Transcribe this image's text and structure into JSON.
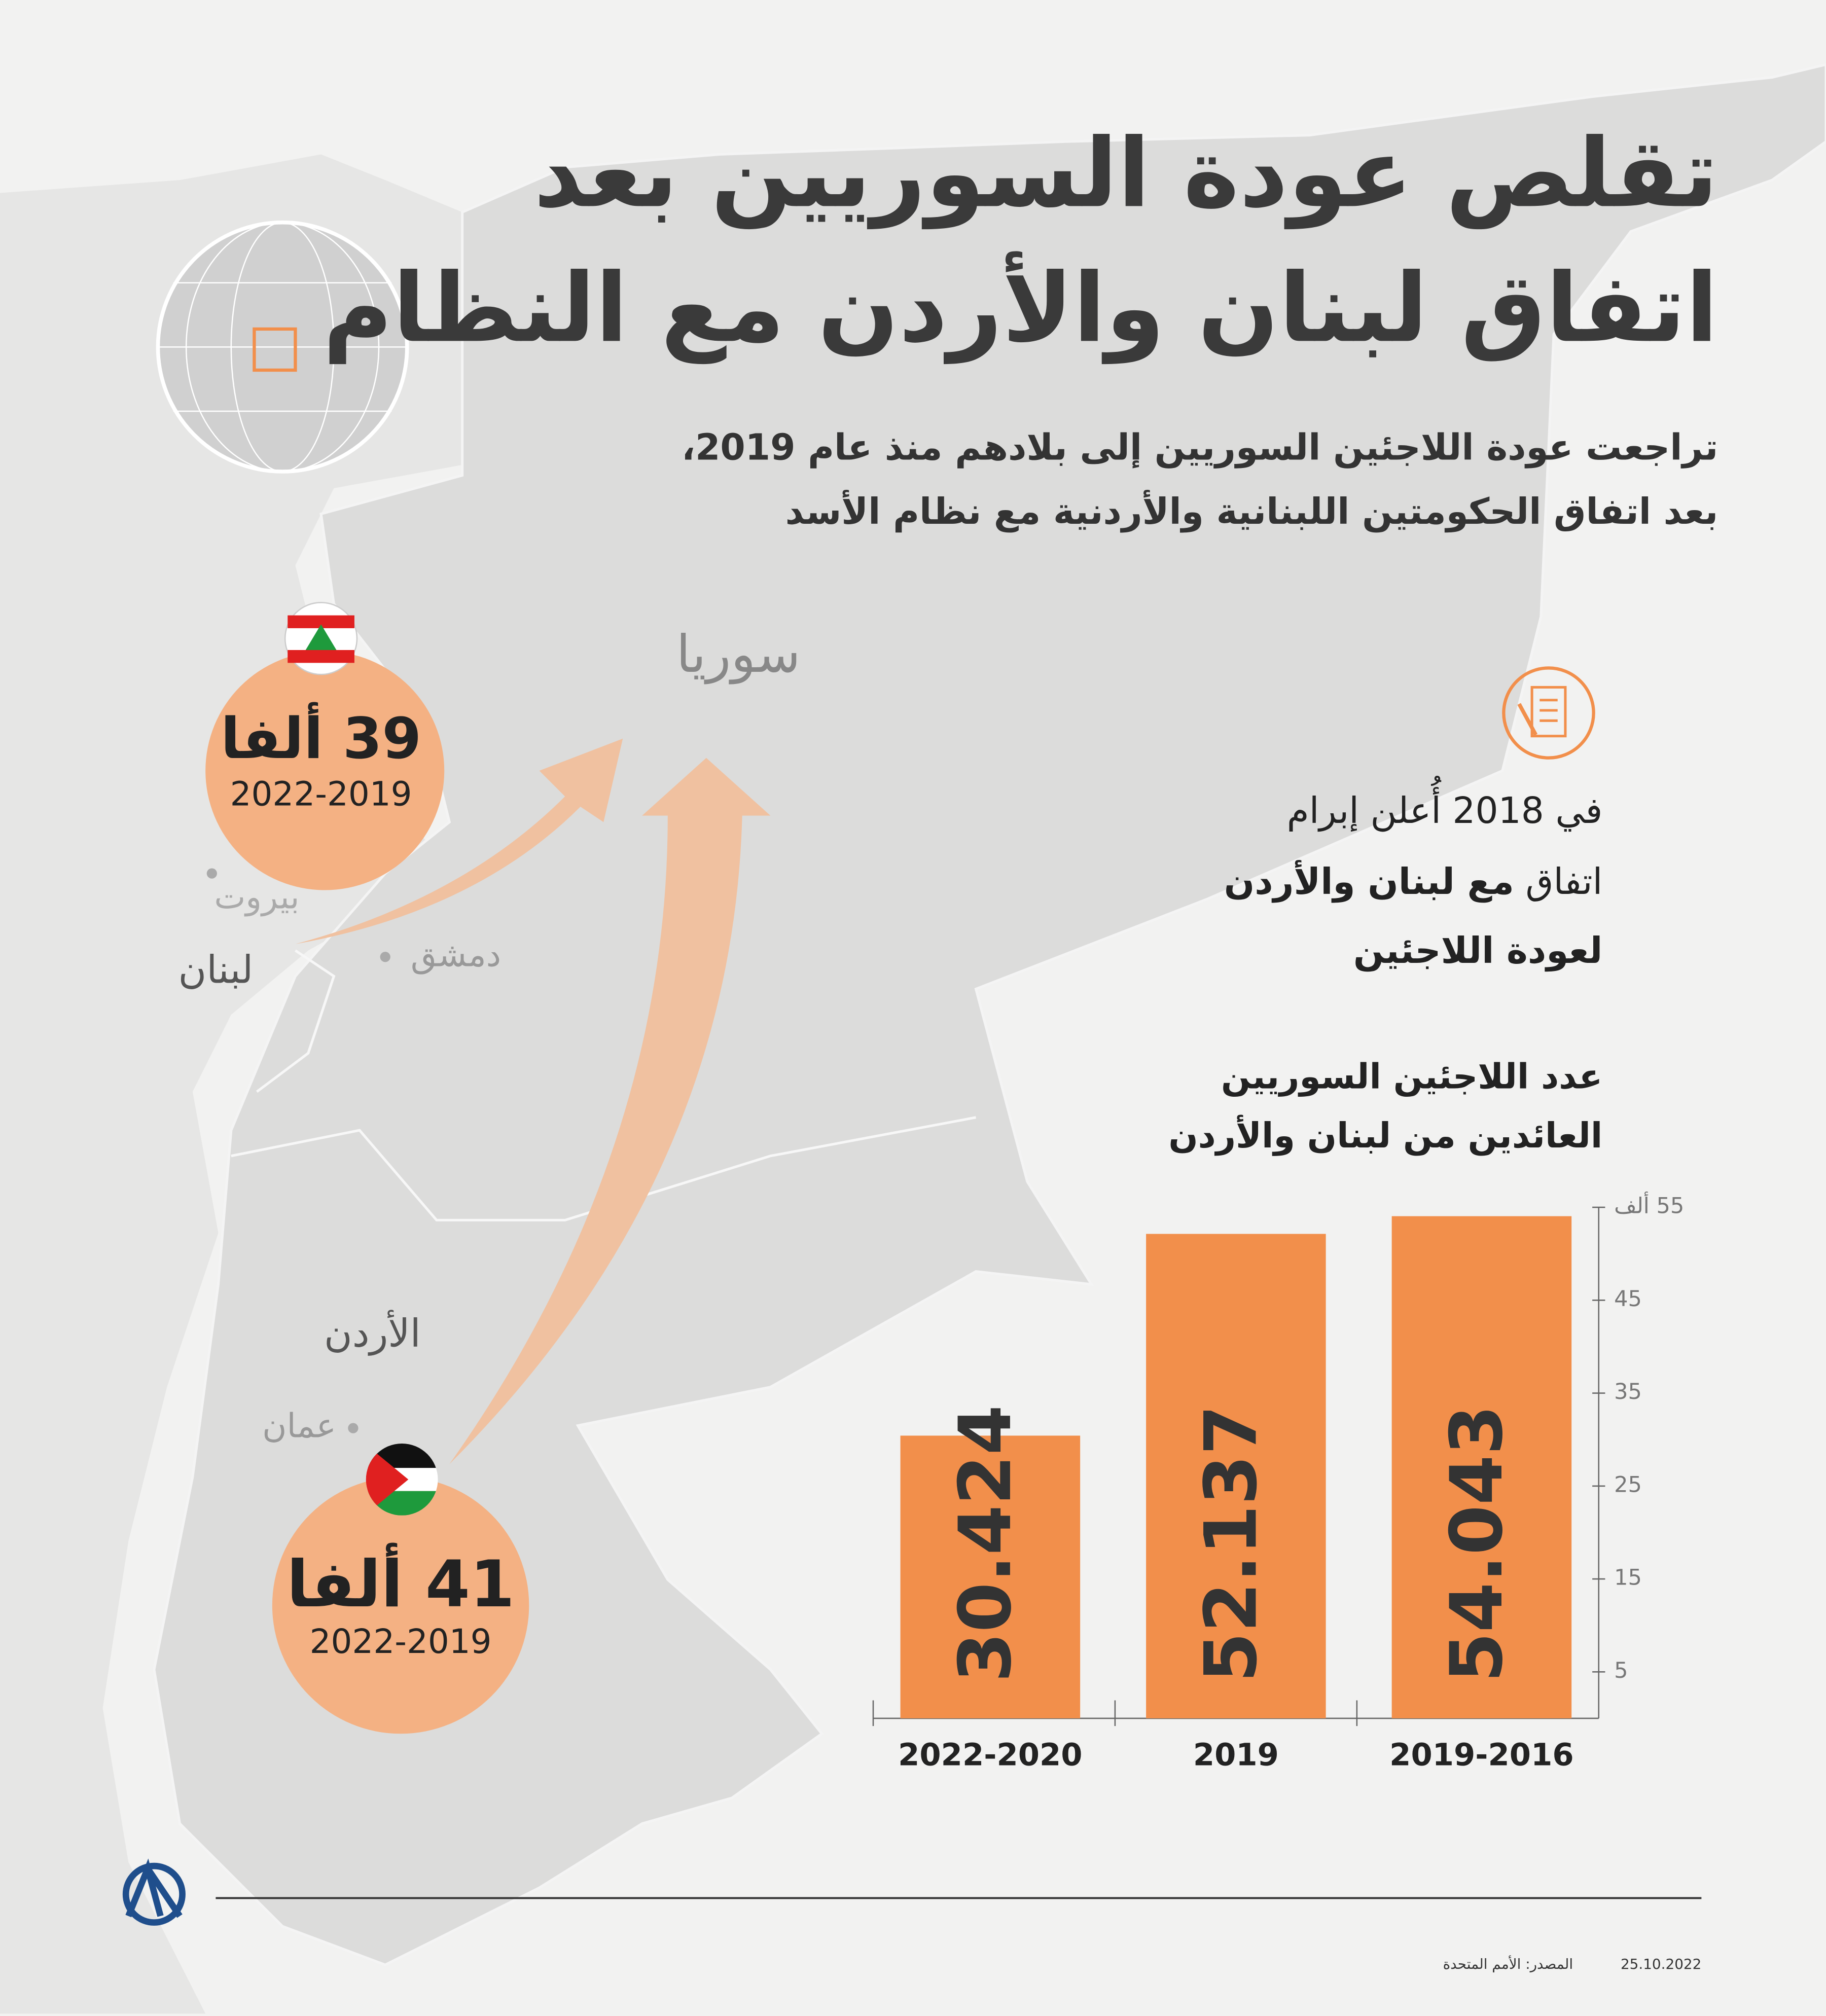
{
  "header": {
    "title_line1": "تقلص عودة السوريين بعد",
    "title_line2": "اتفاق لبنان والأردن مع النظام",
    "subtitle_line1": "تراجعت عودة اللاجئين السوريين إلى بلادهم منذ عام 2019،",
    "subtitle_line2": "بعد اتفاق الحكومتين اللبنانية والأردنية مع نظام الأسد"
  },
  "map": {
    "syria": "سوريا",
    "beirut": "بيروت",
    "lebanon": "لبنان",
    "damascus": "دمشق",
    "jordan": "الأردن",
    "amman": "عمان",
    "lebanon_returns": "39 ألفا",
    "lebanon_period": "2022-2019",
    "jordan_returns": "41 ألفا",
    "jordan_period": "2022-2019"
  },
  "note": {
    "line1": "في 2018 أُعلن إبرام",
    "line2": "اتفاق",
    "line2_bold": "مع لبنان والأردن",
    "line3_bold": "لعودة اللاجئين"
  },
  "chart_data": {
    "type": "bar",
    "title_line1": "عدد اللاجئين السوريين",
    "title_line2": "العائدين من لبنان والأردن",
    "categories": [
      "2022-2020",
      "2019",
      "2019-2016"
    ],
    "values": [
      30.424,
      52.137,
      54.043
    ],
    "color": "#f28f4b",
    "ylim": [
      0,
      55
    ],
    "yticks": [
      5,
      15,
      25,
      35,
      45,
      {
        "value": 55,
        "label": "55 ألف"
      }
    ]
  },
  "footer": {
    "source": "المصدر: الأمم المتحدة",
    "date": "25.10.2022"
  }
}
